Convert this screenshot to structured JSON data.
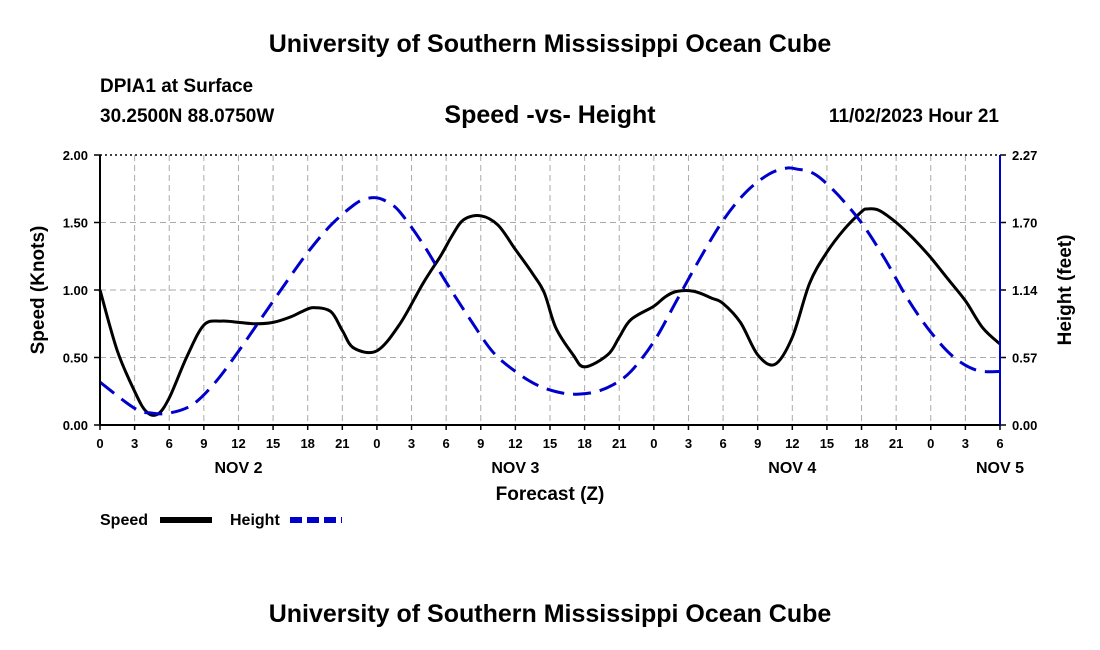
{
  "page": {
    "header_title": "University of Southern Mississippi Ocean Cube",
    "station": "DPIA1 at Surface",
    "coords": "30.2500N  88.0750W",
    "chart_title": "Speed -vs- Height",
    "datetime": "11/02/2023 Hour 21",
    "footer_title": "University of Southern Mississippi Ocean Cube"
  },
  "chart_data": {
    "type": "line",
    "title": "Speed -vs- Height",
    "xlabel": "Forecast (Z)",
    "ylabel": "Speed (Knots)",
    "y2label": "Height (feet)",
    "ylim": [
      0,
      2
    ],
    "y2lim": [
      0,
      2.27
    ],
    "xlim": [
      0,
      78
    ],
    "grid": true,
    "legend_position": "bottom-left",
    "yticks": [
      "0.00",
      "0.50",
      "1.00",
      "1.50",
      "2.00"
    ],
    "y2ticks": [
      "0.00",
      "0.57",
      "1.14",
      "1.70",
      "2.27"
    ],
    "xticks": [
      "0",
      "3",
      "6",
      "9",
      "12",
      "15",
      "18",
      "21",
      "0",
      "3",
      "6",
      "9",
      "12",
      "15",
      "18",
      "21",
      "0",
      "3",
      "6",
      "9",
      "12",
      "15",
      "18",
      "21",
      "0",
      "3",
      "6"
    ],
    "date_labels": [
      {
        "label": "NOV 2",
        "hour": 12
      },
      {
        "label": "NOV 3",
        "hour": 36
      },
      {
        "label": "NOV 4",
        "hour": 60
      },
      {
        "label": "NOV 5",
        "hour": 78
      }
    ],
    "series": [
      {
        "name": "Speed",
        "axis": "left",
        "color": "#000000",
        "style": "solid",
        "x": [
          0,
          1.5,
          3,
          4,
          5,
          6,
          7.5,
          9,
          10.5,
          12,
          13.5,
          15,
          16.5,
          17.5,
          18.5,
          20,
          21,
          22,
          24,
          26,
          28,
          29.5,
          30.5,
          31.5,
          33,
          34.5,
          36,
          37.5,
          38.5,
          39.5,
          41,
          42,
          44,
          45,
          46,
          48,
          49,
          50,
          51.5,
          53,
          54,
          55.5,
          57,
          58.5,
          60,
          61.5,
          63,
          64.5,
          66,
          66.5,
          67.5,
          69,
          70.5,
          72,
          73.5,
          75,
          76.5,
          78
        ],
        "values": [
          1.0,
          0.55,
          0.25,
          0.1,
          0.08,
          0.2,
          0.5,
          0.74,
          0.77,
          0.76,
          0.75,
          0.76,
          0.8,
          0.84,
          0.87,
          0.84,
          0.7,
          0.57,
          0.55,
          0.75,
          1.05,
          1.25,
          1.4,
          1.52,
          1.55,
          1.48,
          1.3,
          1.12,
          0.98,
          0.72,
          0.52,
          0.43,
          0.52,
          0.65,
          0.78,
          0.88,
          0.95,
          0.99,
          0.99,
          0.94,
          0.9,
          0.76,
          0.52,
          0.45,
          0.65,
          1.05,
          1.28,
          1.45,
          1.58,
          1.6,
          1.59,
          1.5,
          1.38,
          1.24,
          1.08,
          0.92,
          0.72,
          0.6
        ]
      },
      {
        "name": "Height",
        "axis": "right",
        "color": "#0000cc",
        "style": "dashed",
        "x": [
          0,
          3,
          4.5,
          6,
          8,
          10,
          12,
          14,
          16,
          18,
          20,
          22,
          23,
          24,
          25,
          26,
          28,
          30,
          32,
          34,
          36,
          38,
          40,
          41.5,
          43,
          44.5,
          46,
          48,
          50,
          52,
          54,
          56,
          58,
          59.5,
          60.5,
          61.5,
          62.5,
          64,
          66,
          68,
          70,
          72,
          74,
          76,
          78
        ],
        "values": [
          0.36,
          0.14,
          0.1,
          0.1,
          0.17,
          0.36,
          0.62,
          0.9,
          1.18,
          1.45,
          1.68,
          1.85,
          1.9,
          1.91,
          1.87,
          1.79,
          1.52,
          1.2,
          0.9,
          0.62,
          0.45,
          0.33,
          0.27,
          0.26,
          0.28,
          0.34,
          0.45,
          0.7,
          1.05,
          1.4,
          1.72,
          1.96,
          2.11,
          2.16,
          2.15,
          2.13,
          2.07,
          1.93,
          1.7,
          1.4,
          1.06,
          0.78,
          0.57,
          0.46,
          0.45
        ]
      }
    ],
    "legend": [
      {
        "name": "Speed",
        "color": "#000000",
        "style": "solid"
      },
      {
        "name": "Height",
        "color": "#0000cc",
        "style": "dashed"
      }
    ]
  }
}
